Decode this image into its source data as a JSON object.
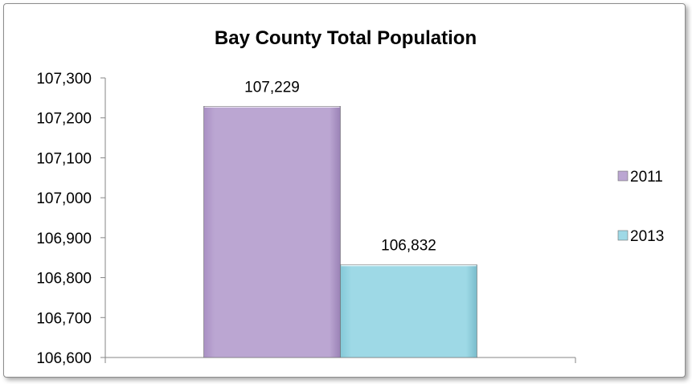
{
  "chart_data": {
    "type": "bar",
    "title": "Bay County Total Population",
    "xlabel": "",
    "ylabel": "",
    "categories": [
      ""
    ],
    "series": [
      {
        "name": "2011",
        "values": [
          107229
        ],
        "color": "#bba6d2",
        "label": "107,229"
      },
      {
        "name": "2013",
        "values": [
          106832
        ],
        "color": "#9ed9e6",
        "label": "106,832"
      }
    ],
    "ylim": [
      106600,
      107300
    ],
    "yticks": [
      {
        "value": 107300,
        "label": "107,300"
      },
      {
        "value": 107200,
        "label": "107,200"
      },
      {
        "value": 107100,
        "label": "107,100"
      },
      {
        "value": 107000,
        "label": "107,000"
      },
      {
        "value": 106900,
        "label": "106,900"
      },
      {
        "value": 106800,
        "label": "106,800"
      },
      {
        "value": 106700,
        "label": "106,700"
      },
      {
        "value": 106600,
        "label": "106,600"
      }
    ],
    "grid": false,
    "legend_position": "right"
  }
}
